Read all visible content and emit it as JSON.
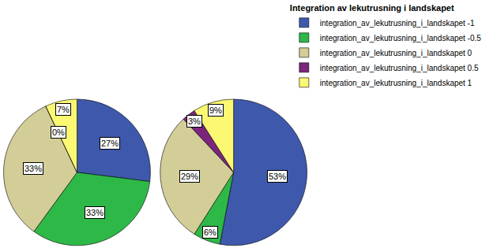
{
  "chart_data": {
    "type": "pie",
    "legend_title": "Integration av lekutrusning i landskapet",
    "categories": [
      "integration_av_lekutrusning_i_landskapet -1",
      "integration_av_lekutrusning_i_landskapet -0.5",
      "integration_av_lekutrusning_i_landskapet 0",
      "integration_av_lekutrusning_i_landskapet 0.5",
      "integration_av_lekutrusning_i_landskapet 1"
    ],
    "colors": [
      "#3e58ac",
      "#2eb848",
      "#d3ce97",
      "#7b267b",
      "#fbf873"
    ],
    "legend": "top right",
    "data_labels": true,
    "series": [
      {
        "values": [
          27,
          33,
          33,
          0,
          7
        ],
        "value_labels": [
          "27%",
          "33%",
          "33%",
          "0%",
          "7%"
        ]
      },
      {
        "values": [
          53,
          6,
          29,
          3,
          9
        ],
        "value_labels": [
          "53%",
          "6%",
          "29%",
          "3%",
          "9%"
        ]
      }
    ]
  }
}
